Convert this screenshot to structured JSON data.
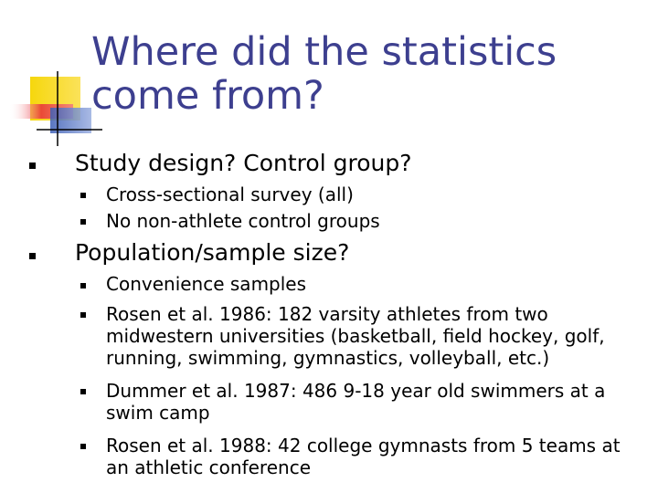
{
  "title": "Where did the statistics come from?",
  "bullets": [
    {
      "text": "Study design? Control group?",
      "subs": [
        "Cross-sectional survey (all)",
        "No non-athlete control groups"
      ]
    },
    {
      "text": "Population/sample size?",
      "subs": [
        "Convenience samples",
        "Rosen et al. 1986: 182 varsity athletes from two midwestern universities (basketball, field hockey, golf, running, swimming, gymnastics, volleyball, etc.)",
        "Dummer et al. 1987: 486 9-18 year old swimmers at a swim camp",
        "Rosen et al. 1988: 42 college gymnasts from 5 teams at an athletic conference"
      ]
    }
  ],
  "colors": {
    "title": "#3d3f8f",
    "logo_yellow": "#f6d70d",
    "logo_red": "#e8303a",
    "logo_blue": "#3d5fb6"
  }
}
